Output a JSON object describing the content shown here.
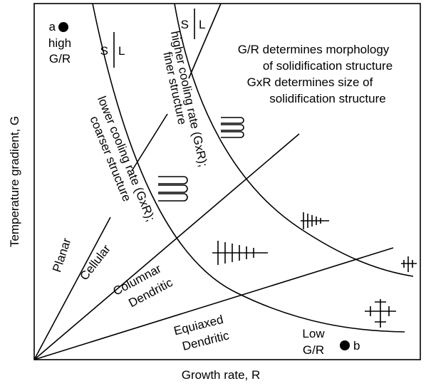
{
  "axes": {
    "y_label": "Temperature gradient, G",
    "x_label": "Growth rate, R"
  },
  "points": [
    {
      "label": "a",
      "lines": [
        "high",
        "G/R"
      ]
    },
    {
      "label": "b",
      "lines": [
        "Low",
        "G/R"
      ]
    }
  ],
  "interface_labels": {
    "solid": "S",
    "liquid": "L"
  },
  "notes": [
    "G/R determines morphology",
    "of solidification structure",
    "GxR determines size of",
    "solidification structure"
  ],
  "curves": {
    "higher": [
      "higher cooling rate (GxR);",
      "finer structure"
    ],
    "lower": [
      "lower cooling rate (GxR);",
      "coarser structure"
    ]
  },
  "regions": {
    "planar": [
      "Planar"
    ],
    "cellular": [
      "Cellular"
    ],
    "columnar": [
      "Columnar",
      "Dendritic"
    ],
    "equiaxed": [
      "Equiaxed",
      "Dendritic"
    ]
  }
}
